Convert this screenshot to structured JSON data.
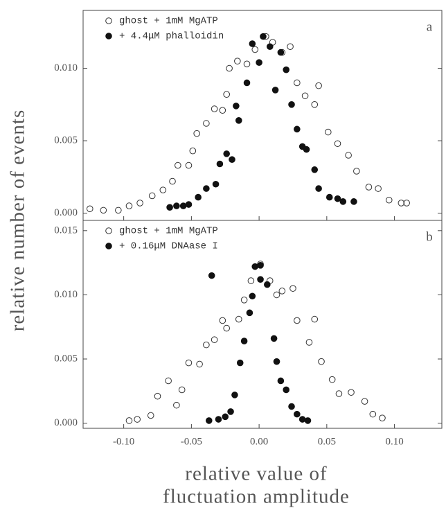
{
  "chart_data": [
    {
      "type": "scatter",
      "ylabel": "relative number of events",
      "annotation": "a",
      "xlim": [
        -0.13,
        0.135
      ],
      "ylim": [
        -0.0005,
        0.014
      ],
      "yticks": [
        {
          "value": 0,
          "label": "0.000"
        },
        {
          "value": 0.005,
          "label": "0.005"
        },
        {
          "value": 0.01,
          "label": "0.010"
        }
      ],
      "series": [
        {
          "name": "ghost + 1mM MgATP",
          "color": "#333",
          "marker": "open",
          "x": [
            -0.125,
            -0.115,
            -0.104,
            -0.096,
            -0.088,
            -0.079,
            -0.071,
            -0.064,
            -0.06,
            -0.052,
            -0.049,
            -0.046,
            -0.039,
            -0.033,
            -0.027,
            -0.024,
            -0.022,
            -0.016,
            -0.009,
            -0.003,
            0.005,
            0.01,
            0.017,
            0.023,
            0.028,
            0.034,
            0.044,
            0.041,
            0.051,
            0.058,
            0.066,
            0.072,
            0.081,
            0.088,
            0.096,
            0.105,
            0.109
          ],
          "values": [
            0.0003,
            0.0002,
            0.0002,
            0.0005,
            0.0007,
            0.0012,
            0.0016,
            0.0022,
            0.0033,
            0.0033,
            0.0043,
            0.0055,
            0.0062,
            0.0072,
            0.0071,
            0.0082,
            0.01,
            0.0105,
            0.0103,
            0.0113,
            0.0122,
            0.0118,
            0.0111,
            0.0115,
            0.009,
            0.0081,
            0.0088,
            0.0075,
            0.0056,
            0.0048,
            0.004,
            0.0029,
            0.0018,
            0.0017,
            0.0009,
            0.0007,
            0.0007
          ]
        },
        {
          "name": "+ 4.4μM phalloidin",
          "color": "#111",
          "marker": "filled",
          "x": [
            -0.066,
            -0.061,
            -0.056,
            -0.052,
            -0.045,
            -0.039,
            -0.032,
            -0.029,
            -0.024,
            -0.02,
            -0.017,
            -0.015,
            -0.009,
            -0.005,
            0.0,
            0.003,
            0.008,
            0.012,
            0.016,
            0.02,
            0.024,
            0.028,
            0.032,
            0.035,
            0.041,
            0.044,
            0.052,
            0.058,
            0.062,
            0.07
          ],
          "values": [
            0.0004,
            0.0005,
            0.0005,
            0.0006,
            0.0011,
            0.0017,
            0.002,
            0.0034,
            0.0041,
            0.0037,
            0.0074,
            0.0064,
            0.009,
            0.0117,
            0.0104,
            0.0122,
            0.0115,
            0.0085,
            0.0111,
            0.0099,
            0.0075,
            0.0058,
            0.0046,
            0.0044,
            0.003,
            0.0017,
            0.0011,
            0.001,
            0.0008,
            0.0008
          ]
        }
      ]
    },
    {
      "type": "scatter",
      "xlabel": [
        "relative value of",
        "fluctuation amplitude"
      ],
      "annotation": "b",
      "xlim": [
        -0.13,
        0.135
      ],
      "ylim": [
        -0.0004,
        0.0158
      ],
      "xticks": [
        {
          "value": -0.1,
          "label": "-0.10"
        },
        {
          "value": -0.05,
          "label": "-0.05"
        },
        {
          "value": 0,
          "label": "0.00"
        },
        {
          "value": 0.05,
          "label": "0.05"
        },
        {
          "value": 0.1,
          "label": "0.10"
        }
      ],
      "yticks": [
        {
          "value": 0,
          "label": "0.000"
        },
        {
          "value": 0.005,
          "label": "0.005"
        },
        {
          "value": 0.01,
          "label": "0.010"
        },
        {
          "value": 0.015,
          "label": "0.015"
        }
      ],
      "series": [
        {
          "name": "ghost + 1mM MgATP",
          "color": "#333",
          "marker": "open",
          "x": [
            -0.096,
            -0.09,
            -0.08,
            -0.075,
            -0.067,
            -0.061,
            -0.057,
            -0.052,
            -0.044,
            -0.039,
            -0.033,
            -0.027,
            -0.024,
            -0.015,
            -0.011,
            -0.006,
            0.001,
            0.008,
            0.013,
            0.017,
            0.025,
            0.028,
            0.037,
            0.041,
            0.046,
            0.054,
            0.059,
            0.068,
            0.078,
            0.084,
            0.091
          ],
          "values": [
            0.0002,
            0.0003,
            0.0006,
            0.0021,
            0.0033,
            0.0014,
            0.0026,
            0.0047,
            0.0046,
            0.0061,
            0.0065,
            0.008,
            0.0074,
            0.0081,
            0.0096,
            0.0111,
            0.0124,
            0.0111,
            0.01,
            0.0103,
            0.0105,
            0.008,
            0.0063,
            0.0081,
            0.0048,
            0.0034,
            0.0023,
            0.0024,
            0.0017,
            0.0007,
            0.0004
          ]
        },
        {
          "name": "+ 0.16μM DNAase I",
          "color": "#111",
          "marker": "filled",
          "x": [
            -0.037,
            -0.03,
            -0.025,
            -0.021,
            -0.018,
            -0.014,
            -0.011,
            -0.007,
            -0.005,
            -0.003,
            0.001,
            0.001,
            0.006,
            0.011,
            0.013,
            0.016,
            0.02,
            0.024,
            0.028,
            0.032,
            0.036,
            -0.035
          ],
          "values": [
            0.0002,
            0.0003,
            0.0005,
            0.0009,
            0.0022,
            0.0047,
            0.0064,
            0.0086,
            0.0099,
            0.0122,
            0.0123,
            0.0112,
            0.0108,
            0.0066,
            0.0048,
            0.0033,
            0.0026,
            0.0013,
            0.0007,
            0.0003,
            0.0002,
            0.0115
          ]
        }
      ]
    }
  ]
}
